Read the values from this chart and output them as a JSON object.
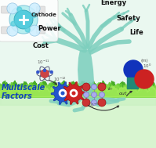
{
  "bg_color": "#ffffff",
  "sky_color": "#eaf8f0",
  "ground_color": "#d8f5d0",
  "tree_color": "#7ecfbe",
  "text_energy": "Energy",
  "text_safety": "Safety",
  "text_life": "Life",
  "text_power": "Power",
  "text_cost": "Cost",
  "text_cathode": "Cathode",
  "text_multiscale": "Multiscale",
  "text_factors": "Factors",
  "label_in": "in",
  "label_out": "out",
  "label_m": "(m)",
  "grass_color1": "#55bb33",
  "grass_color2": "#88dd44",
  "grass_color3": "#aaf066",
  "gear_blue": "#2255cc",
  "gear_red": "#cc2222",
  "crystal_red": "#cc3333",
  "crystal_blue": "#aaaaee",
  "circle_blue": "#1133bb",
  "square_teal": "#228877",
  "circle_red": "#cc2222",
  "atom_color": "#888899",
  "atom_orbit": "#555577"
}
